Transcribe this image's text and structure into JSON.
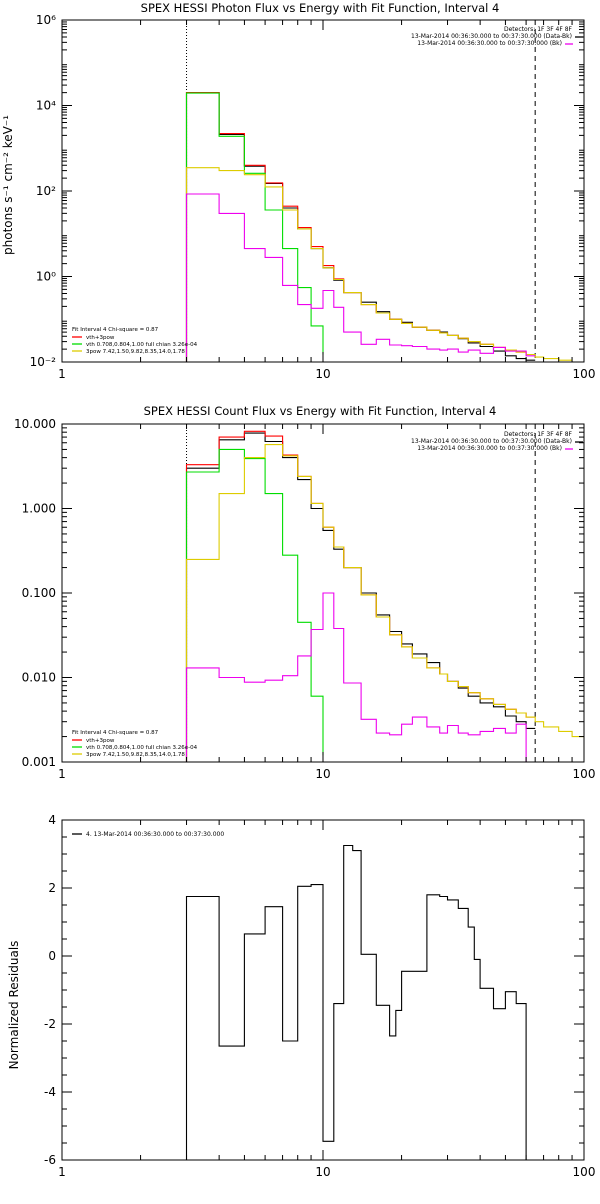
{
  "panels": [
    {
      "title": "SPEX HESSI Photon Flux vs Energy with Fit Function, Interval 4",
      "ylabel": "photons s⁻¹ cm⁻² keV⁻¹",
      "xlabel": ""
    },
    {
      "title": "SPEX HESSI Count Flux vs Energy with Fit Function, Interval 4",
      "ylabel": "",
      "xlabel": ""
    },
    {
      "title": "",
      "ylabel": "Normalized Residuals",
      "xlabel": ""
    }
  ],
  "legends": {
    "photon_top": [
      "Detectors: 1F 3F 4F 8F",
      "13-Mar-2014 00:36:30.000 to 00:37:30.000 (Data-Bk)",
      "13-Mar-2014 00:36:30.000 to 00:37:30.000 (Bk)"
    ],
    "photon_bottom": [
      "Fit Interval  4   Chi-square = 0.87",
      "vth+3pow",
      "vth 0.708,0.804,1.00  full chian 3.26e-04",
      "3pow 7.42,1.50,9.82,8.35,14.0,1.78"
    ],
    "count_top": [
      "Detectors: 1F 3F 4F 8F",
      "13-Mar-2014 00:36:30.000 to 00:37:30.000 (Data-Bk)",
      "13-Mar-2014 00:36:30.000 to 00:37:30.000 (Bk)"
    ],
    "count_bottom": [
      "Fit Interval  4   Chi-square = 0.87",
      "vth+3pow",
      "vth 0.708,0.804,1.00  full chian 3.26e-04",
      "3pow 7.42,1.50,9.82,8.35,14.0,1.78"
    ],
    "residual_top": [
      "4. 13-Mar-2014 00:36:30.000 to 00:37:30.000"
    ]
  },
  "colors": {
    "data": "#000000",
    "total_fit": "#ff0000",
    "thermal": "#00dd00",
    "power": "#ddcc00",
    "background": "#ee00ee"
  },
  "chart_data": [
    {
      "type": "line",
      "title": "SPEX HESSI Photon Flux vs Energy with Fit Function, Interval 4",
      "xscale": "log",
      "yscale": "log",
      "xlim": [
        1,
        100
      ],
      "ylim": [
        0.01,
        1000000
      ],
      "x_ticks": [
        "1",
        "10",
        "100"
      ],
      "y_ticks": [
        "10⁻²",
        "10⁰",
        "10²",
        "10⁴",
        "10⁶"
      ],
      "y_tick_values": [
        0.01,
        1,
        100,
        10000,
        1000000
      ],
      "fit_range_start": 3,
      "fit_range_end": 65,
      "series": [
        {
          "name": "(Data-Bk)",
          "color_key": "data",
          "edges": [
            3,
            4,
            5,
            6,
            7,
            8,
            9,
            10,
            11,
            12,
            14,
            16,
            18,
            20,
            22,
            25,
            28,
            30,
            33,
            36,
            40,
            45,
            50,
            55,
            60,
            65
          ],
          "values": [
            20000,
            2100,
            380,
            150,
            40,
            13,
            4.5,
            1.6,
            0.82,
            0.42,
            0.25,
            0.15,
            0.1,
            0.085,
            0.065,
            0.055,
            0.05,
            0.042,
            0.035,
            0.028,
            0.023,
            0.018,
            0.014,
            0.012,
            0.011
          ]
        },
        {
          "name": "vth+3pow",
          "color_key": "total_fit",
          "edges": [
            3,
            4,
            5,
            6,
            7,
            8,
            9,
            10,
            11,
            12,
            14,
            16,
            18,
            20,
            22,
            25,
            28,
            30,
            33,
            36,
            40,
            45,
            50,
            55,
            60,
            65
          ],
          "values": [
            20000,
            2200,
            400,
            155,
            44,
            14,
            5,
            1.8,
            0.88,
            0.42,
            0.22,
            0.14,
            0.1,
            0.08,
            0.065,
            0.055,
            0.048,
            0.042,
            0.036,
            0.03,
            0.026,
            0.022,
            0.019,
            0.017,
            0.015
          ]
        },
        {
          "name": "vth",
          "color_key": "thermal",
          "edges": [
            3,
            4,
            5,
            6,
            7,
            8,
            9,
            10
          ],
          "values": [
            19500,
            1900,
            260,
            36,
            4.5,
            0.55,
            0.07,
            0.015
          ]
        },
        {
          "name": "3pow",
          "color_key": "power",
          "edges": [
            3,
            4,
            5,
            6,
            7,
            8,
            9,
            10,
            11,
            12,
            14,
            16,
            18,
            20,
            22,
            25,
            28,
            30,
            33,
            36,
            40,
            45,
            50,
            55,
            60,
            65,
            70,
            80,
            90
          ],
          "values": [
            350,
            300,
            240,
            125,
            36,
            13,
            4.5,
            1.6,
            0.85,
            0.42,
            0.22,
            0.14,
            0.1,
            0.08,
            0.065,
            0.055,
            0.048,
            0.042,
            0.036,
            0.03,
            0.026,
            0.022,
            0.019,
            0.017,
            0.015,
            0.013,
            0.012,
            0.011
          ]
        },
        {
          "name": "(Bk)",
          "color_key": "background",
          "edges": [
            3,
            4,
            5,
            6,
            7,
            8,
            9,
            10,
            11,
            12,
            14,
            16,
            18,
            20,
            22,
            25,
            28,
            30,
            33,
            36,
            40,
            45,
            50,
            55,
            60,
            65
          ],
          "values": [
            85,
            30,
            4.5,
            2.8,
            0.62,
            0.22,
            0.18,
            0.47,
            0.19,
            0.05,
            0.026,
            0.034,
            0.025,
            0.024,
            0.023,
            0.02,
            0.019,
            0.02,
            0.017,
            0.019,
            0.016,
            0.022,
            0.018,
            0.018,
            0.014
          ]
        }
      ]
    },
    {
      "type": "line",
      "title": "SPEX HESSI Count Flux vs Energy with Fit Function, Interval 4",
      "xscale": "log",
      "yscale": "log",
      "xlim": [
        1,
        100
      ],
      "ylim": [
        0.001,
        10
      ],
      "x_ticks": [
        "1",
        "10",
        "100"
      ],
      "y_ticks": [
        "0.001",
        "0.010",
        "0.100",
        "1.000",
        "10.000"
      ],
      "y_tick_values": [
        0.001,
        0.01,
        0.1,
        1,
        10
      ],
      "fit_range_start": 3,
      "fit_range_end": 65,
      "series": [
        {
          "name": "(Data-Bk)",
          "color_key": "data",
          "edges": [
            3,
            4,
            5,
            6,
            7,
            8,
            9,
            10,
            11,
            12,
            14,
            16,
            18,
            20,
            22,
            25,
            28,
            30,
            33,
            36,
            40,
            45,
            50,
            55,
            60,
            65
          ],
          "values": [
            3.0,
            6.5,
            7.8,
            6.2,
            4.0,
            2.2,
            1.0,
            0.55,
            0.33,
            0.2,
            0.1,
            0.055,
            0.035,
            0.025,
            0.019,
            0.015,
            0.011,
            0.009,
            0.0075,
            0.006,
            0.005,
            0.0045,
            0.0035,
            0.003,
            0.0025
          ]
        },
        {
          "name": "vth+3pow",
          "color_key": "total_fit",
          "edges": [
            3,
            4,
            5,
            6,
            7,
            8,
            9,
            10,
            11,
            12,
            14,
            16,
            18,
            20,
            22,
            25,
            28,
            30,
            33,
            36,
            40,
            45,
            50,
            55,
            60,
            65
          ],
          "values": [
            3.3,
            7.0,
            8.2,
            7.2,
            4.3,
            2.4,
            1.15,
            0.6,
            0.35,
            0.2,
            0.095,
            0.052,
            0.032,
            0.023,
            0.017,
            0.013,
            0.011,
            0.009,
            0.0078,
            0.0066,
            0.0056,
            0.0048,
            0.0042,
            0.0038,
            0.0034
          ]
        },
        {
          "name": "vth",
          "color_key": "thermal",
          "edges": [
            3,
            4,
            5,
            6,
            7,
            8,
            9,
            10
          ],
          "values": [
            2.7,
            5.0,
            3.9,
            1.5,
            0.28,
            0.045,
            0.006,
            0.0012
          ]
        },
        {
          "name": "3pow",
          "color_key": "power",
          "edges": [
            3,
            4,
            5,
            6,
            7,
            8,
            9,
            10,
            11,
            12,
            14,
            16,
            18,
            20,
            22,
            25,
            28,
            30,
            33,
            36,
            40,
            45,
            50,
            55,
            60,
            65,
            70,
            80,
            90,
            100
          ],
          "values": [
            0.25,
            1.5,
            4.0,
            5.7,
            4.2,
            2.4,
            1.15,
            0.6,
            0.35,
            0.2,
            0.095,
            0.052,
            0.032,
            0.023,
            0.017,
            0.013,
            0.011,
            0.009,
            0.0078,
            0.0066,
            0.0056,
            0.0048,
            0.0042,
            0.0038,
            0.0034,
            0.003,
            0.0026,
            0.0023,
            0.002
          ]
        },
        {
          "name": "(Bk)",
          "color_key": "background",
          "edges": [
            3,
            4,
            5,
            6,
            7,
            8,
            9,
            10,
            11,
            12,
            14,
            16,
            18,
            20,
            22,
            25,
            28,
            30,
            33,
            36,
            40,
            45,
            50,
            55,
            60,
            65
          ],
          "values": [
            0.013,
            0.01,
            0.0088,
            0.0093,
            0.0105,
            0.018,
            0.037,
            0.1,
            0.038,
            0.0086,
            0.0032,
            0.0022,
            0.0021,
            0.0028,
            0.0034,
            0.0026,
            0.0022,
            0.0027,
            0.0022,
            0.0021,
            0.0023,
            0.0025,
            0.0022,
            0.0028,
            0.001
          ]
        }
      ]
    },
    {
      "type": "line",
      "title": "",
      "xscale": "log",
      "yscale": "linear",
      "xlim": [
        1,
        100
      ],
      "ylim": [
        -6,
        4
      ],
      "x_ticks": [
        "1",
        "10",
        "100"
      ],
      "y_ticks": [
        "-6",
        "-4",
        "-2",
        "0",
        "2",
        "4"
      ],
      "y_tick_values": [
        -6,
        -4,
        -2,
        0,
        2,
        4
      ],
      "series": [
        {
          "name": "4. 13-Mar-2014 00:36:30.000 to 00:37:30.000",
          "color_key": "data",
          "edges": [
            3,
            4,
            5,
            6,
            7,
            8,
            9,
            10,
            11,
            12,
            13,
            14,
            16,
            18,
            19,
            20,
            22,
            25,
            28,
            30,
            33,
            36,
            38,
            40,
            45,
            50,
            55,
            60,
            65
          ],
          "values": [
            1.75,
            -2.65,
            0.65,
            1.45,
            -2.5,
            2.05,
            2.1,
            -5.45,
            -1.4,
            3.25,
            3.1,
            0.05,
            -1.45,
            -2.35,
            -1.6,
            -0.45,
            -0.45,
            1.8,
            1.75,
            1.65,
            1.4,
            0.85,
            -0.1,
            -0.95,
            -1.55,
            -1.05,
            -1.4,
            -6.0
          ]
        }
      ]
    }
  ]
}
